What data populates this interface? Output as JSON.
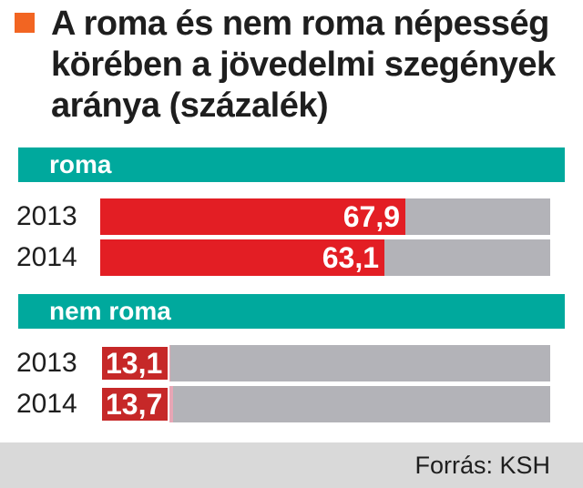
{
  "colors": {
    "accent": "#f26522",
    "band": "#00a99d",
    "bar": "#e31e24",
    "track": "#b3b3b8",
    "footer": "#d9d9d9"
  },
  "chart_data": {
    "type": "bar",
    "orientation": "horizontal",
    "title": "A roma és nem roma népesség körében a jövedelmi szegények aránya (százalék)",
    "xlim": [
      0,
      100
    ],
    "groups": [
      {
        "name": "roma",
        "categories": [
          "2013",
          "2014"
        ],
        "values": [
          67.9,
          63.1
        ],
        "labels": [
          "67,9",
          "63,1"
        ]
      },
      {
        "name": "nem roma",
        "categories": [
          "2013",
          "2014"
        ],
        "values": [
          13.1,
          13.7
        ],
        "labels": [
          "13,1",
          "13,7"
        ]
      }
    ],
    "source": "Forrás: KSH"
  }
}
